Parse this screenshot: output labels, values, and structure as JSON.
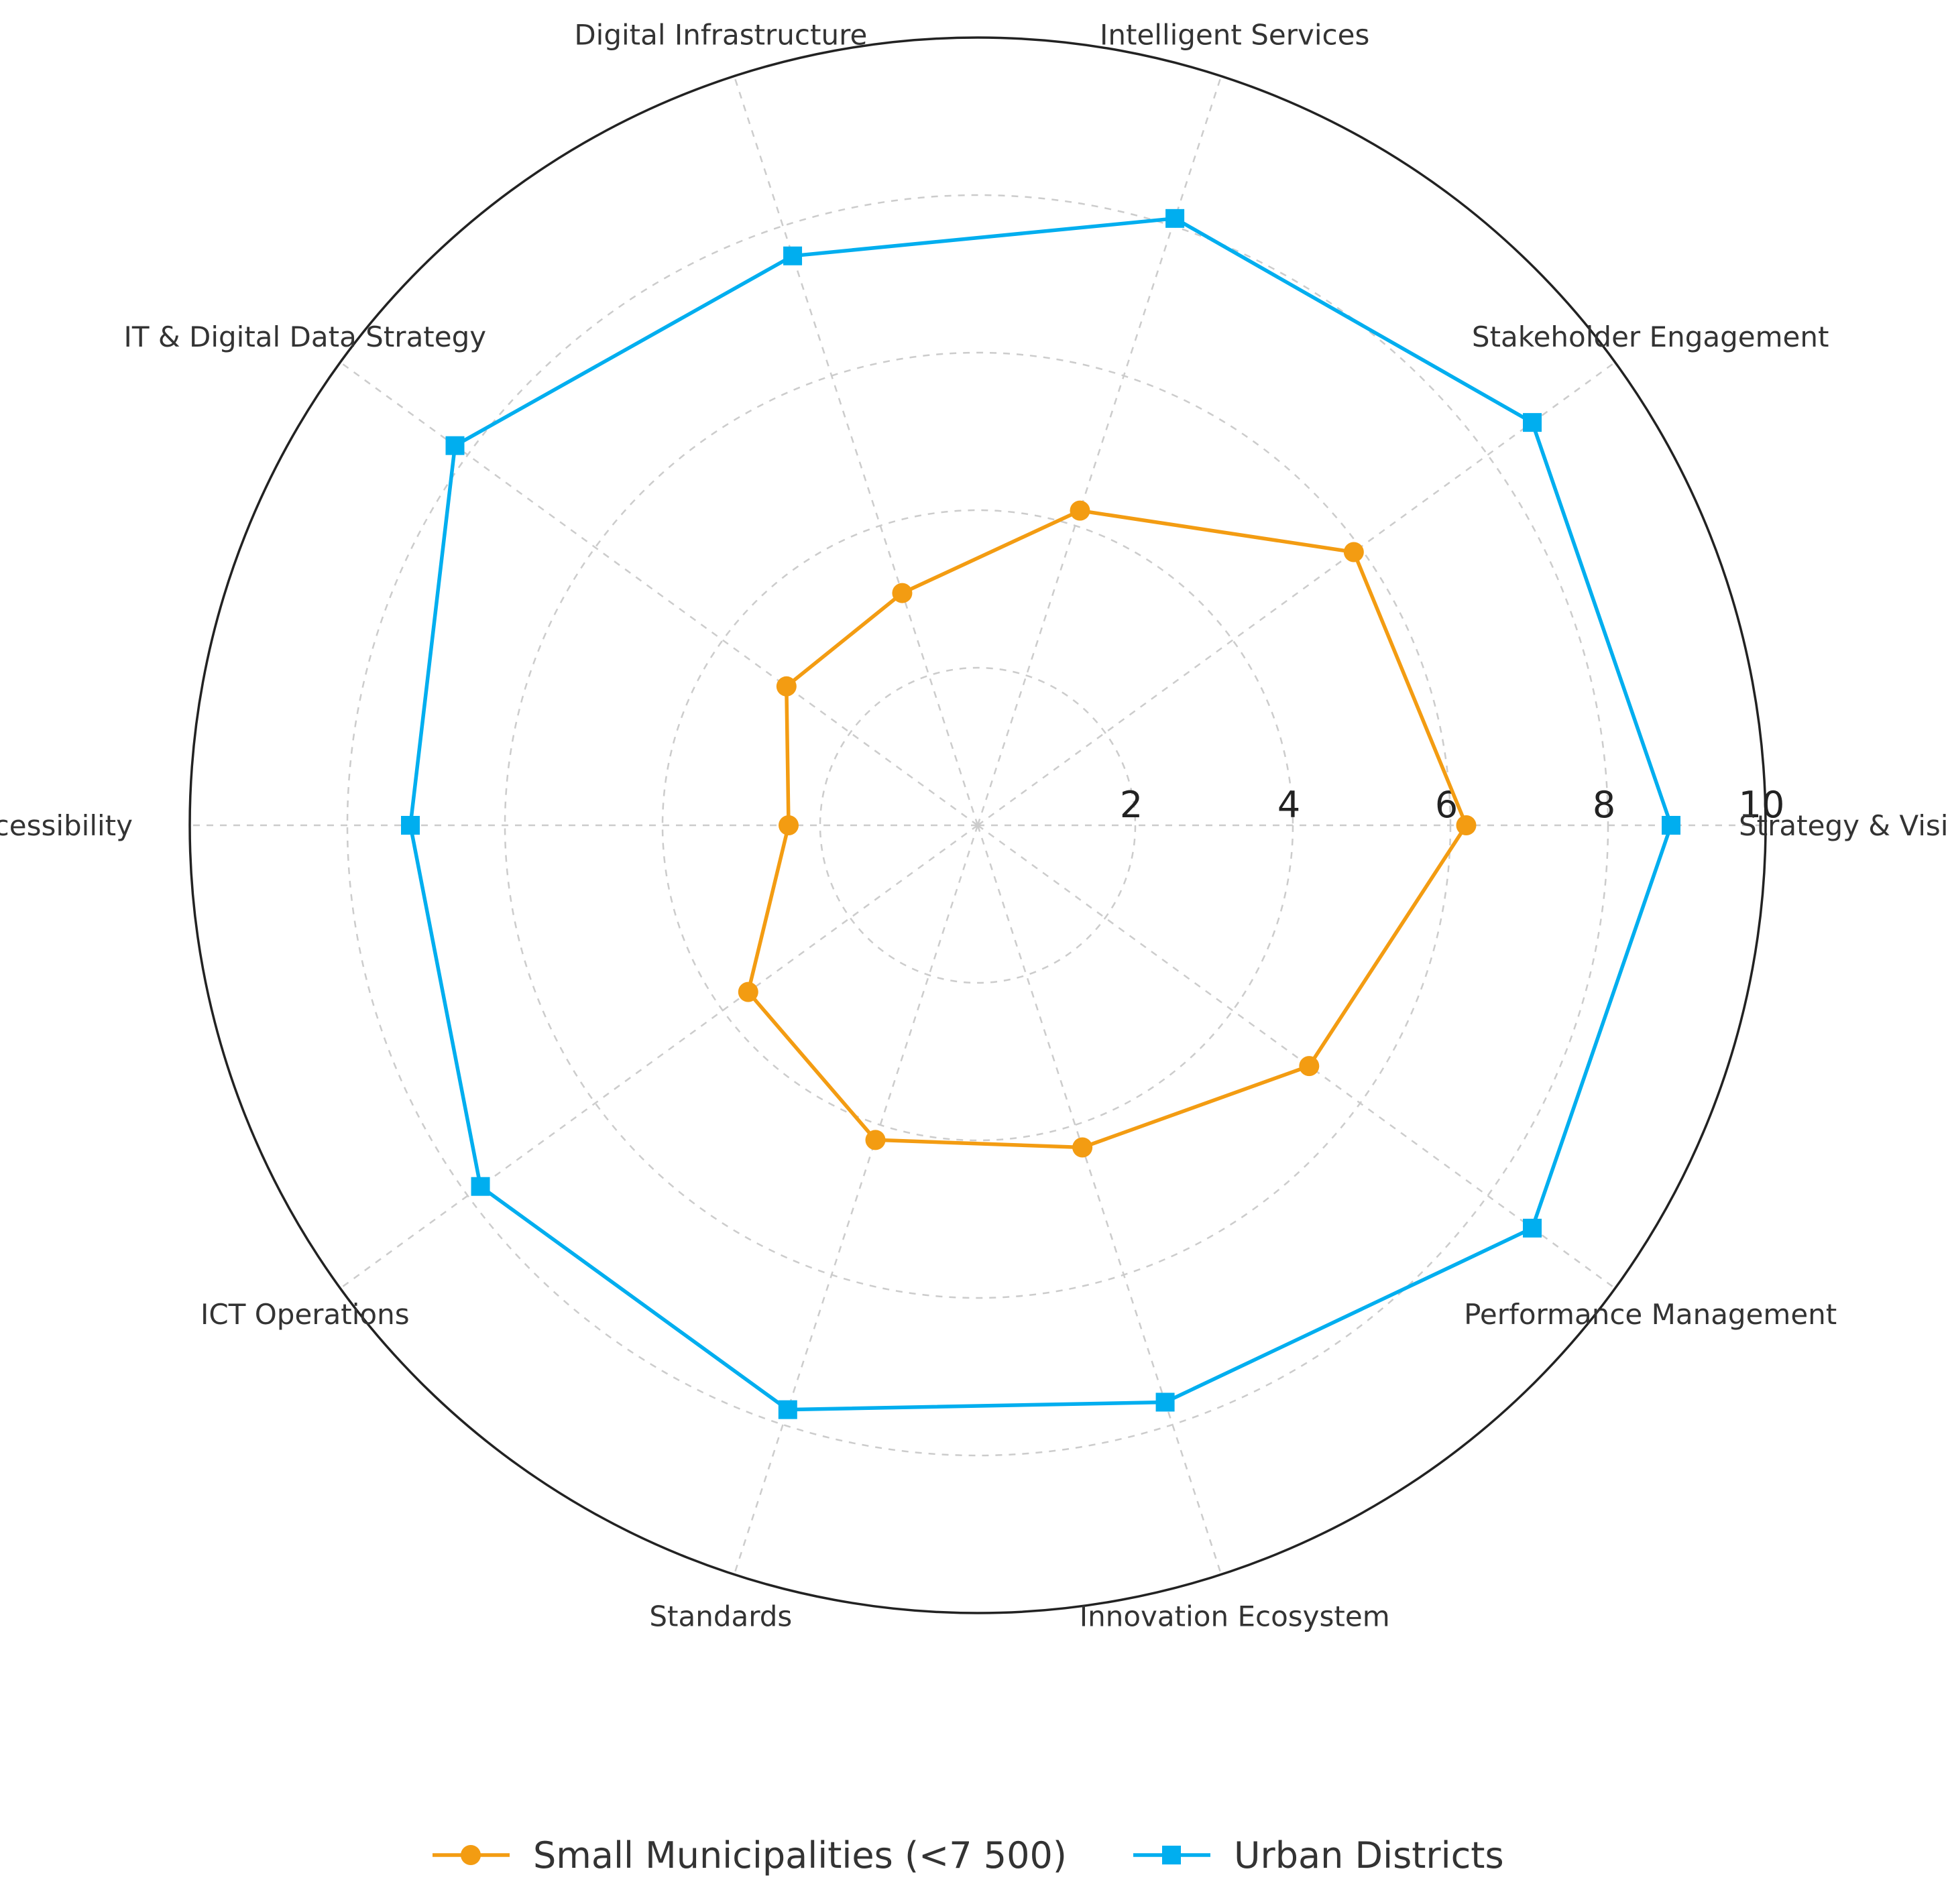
{
  "chart_data": {
    "type": "radar",
    "title": "",
    "categories": [
      "Strategy & Vision",
      "Stakeholder Engagement",
      "Intelligent Services",
      "Digital Infrastructure",
      "IT & Digital Data Strategy",
      "Data Accessibility",
      "ICT Operations",
      "Standards",
      "Innovation Ecosystem",
      "Performance Management"
    ],
    "radial_range": [
      0,
      10
    ],
    "radial_ticks": [
      2,
      4,
      6,
      8,
      10
    ],
    "grid": true,
    "legend_position": "bottom",
    "series": [
      {
        "name": "Small Municipalities (<7 500)",
        "color": "#f39c12",
        "marker": "circle",
        "values": [
          6.2,
          5.9,
          4.2,
          3.1,
          3.0,
          2.4,
          3.6,
          4.2,
          4.3,
          5.2
        ]
      },
      {
        "name": "Urban Districts",
        "color": "#00aeef",
        "marker": "square",
        "values": [
          8.8,
          8.7,
          8.1,
          7.6,
          8.2,
          7.2,
          7.8,
          7.8,
          7.7,
          8.7
        ]
      }
    ]
  }
}
